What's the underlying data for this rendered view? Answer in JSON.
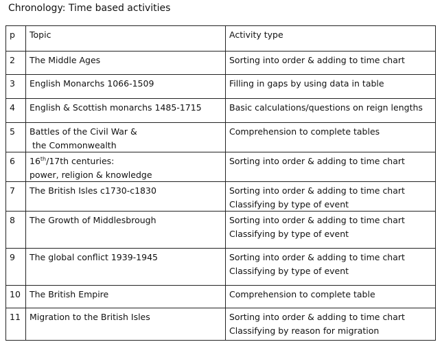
{
  "title": "Chronology: Time based activities",
  "table": {
    "header": [
      "p",
      "Topic",
      "Activity type"
    ],
    "rows": [
      [
        2,
        "The Middle Ages",
        "Sorting into order & adding to time chart"
      ],
      [
        3,
        "English Monarchs 1066-1509",
        "Filling in gaps by using data in table"
      ],
      [
        4,
        "English & Scottish monarchs 1485-1715",
        "Basic calculations/questions on reign lengths"
      ],
      [
        5,
        [
          "Battles of the Civil War &",
          " the Commonwealth"
        ],
        "Comprehension to complete tables"
      ],
      [
        6,
        [
          [
            "16",
            {
              "sup": "th"
            },
            "/17th centuries:"
          ],
          "power, religion & knowledge"
        ],
        "Sorting into order & adding to time chart"
      ],
      [
        7,
        "The British Isles c1730-c1830",
        [
          "Sorting into order & adding to time chart",
          "Classifying by type of event"
        ]
      ],
      [
        8,
        "The Growth of Middlesbrough",
        [
          "Sorting into order & adding to time chart",
          "Classifying by type of event"
        ]
      ],
      [
        9,
        "The global conflict 1939-1945",
        [
          "Sorting into order & adding to time chart",
          "Classifying by type of event"
        ]
      ],
      [
        10,
        "The British Empire",
        "Comprehension to complete table"
      ],
      [
        11,
        "Migration to the British Isles",
        [
          "Sorting into order & adding to time chart",
          "Classifying by reason for migration"
        ]
      ]
    ]
  }
}
